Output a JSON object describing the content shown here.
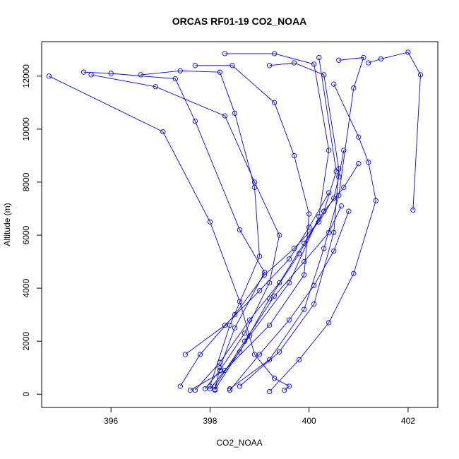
{
  "chart_data": {
    "type": "line",
    "title": "ORCAS RF01-19 CO2_NOAA",
    "xlabel": "CO2_NOAA",
    "ylabel": "Altitude (m)",
    "xlim": [
      394.6,
      402.6
    ],
    "ylim": [
      -500,
      13300
    ],
    "xticks": [
      396,
      398,
      400,
      402
    ],
    "yticks": [
      0,
      2000,
      4000,
      6000,
      8000,
      10000,
      12000
    ],
    "grid": false,
    "legend": "none",
    "series_color": "#0000ff",
    "marker": "open-circle",
    "series": [
      {
        "x": [
          394.75,
          397.05,
          398.0,
          398.6,
          398.9,
          399.3,
          399.6,
          399.5
        ],
        "y": [
          12000,
          9900,
          6500,
          3500,
          1500,
          600,
          300,
          150
        ]
      },
      {
        "x": [
          395.45,
          396.0,
          397.3,
          397.7,
          398.6,
          399.1,
          398.5,
          398.2,
          398.1
        ],
        "y": [
          12150,
          12100,
          11900,
          10300,
          6200,
          4600,
          2500,
          1000,
          150
        ]
      },
      {
        "x": [
          395.6,
          396.9,
          398.3,
          398.9,
          399.4,
          399.2,
          398.7,
          398.2,
          397.9
        ],
        "y": [
          12050,
          11600,
          10500,
          8000,
          6000,
          4200,
          2300,
          900,
          200
        ]
      },
      {
        "x": [
          396.6,
          397.4,
          398.2,
          398.5,
          398.9,
          399.0,
          398.4,
          398.0
        ],
        "y": [
          12050,
          12200,
          12150,
          10600,
          7800,
          5200,
          2600,
          300
        ]
      },
      {
        "x": [
          397.7,
          398.45,
          399.3,
          399.7,
          400.0,
          399.9,
          399.2,
          398.3,
          397.6
        ],
        "y": [
          12400,
          12400,
          11000,
          9000,
          6800,
          4500,
          2600,
          900,
          150
        ]
      },
      {
        "x": [
          398.3,
          399.3,
          400.1,
          400.4,
          400.2,
          399.6,
          398.8,
          398.1
        ],
        "y": [
          12850,
          12850,
          12450,
          9200,
          6700,
          4200,
          2200,
          180
        ]
      },
      {
        "x": [
          399.2,
          399.7,
          400.3,
          400.6,
          400.5,
          400.1,
          399.4,
          398.6
        ],
        "y": [
          12400,
          12500,
          12050,
          8500,
          6100,
          3400,
          1600,
          300
        ]
      },
      {
        "x": [
          400.6,
          401.1,
          400.9,
          400.6,
          400.3,
          399.9,
          399.2,
          398.4
        ],
        "y": [
          12600,
          12700,
          11550,
          7500,
          5500,
          3200,
          1300,
          200
        ]
      },
      {
        "x": [
          401.2,
          401.45,
          402.0,
          402.25,
          402.1
        ],
        "y": [
          12500,
          12650,
          12900,
          12050,
          6950
        ]
      },
      {
        "x": [
          400.5,
          401.0,
          401.2,
          401.35,
          400.9,
          400.4,
          399.8,
          399.2
        ],
        "y": [
          11700,
          9700,
          8750,
          7300,
          4550,
          2700,
          1300,
          100
        ]
      },
      {
        "x": [
          397.4,
          397.8,
          398.5,
          399.1,
          399.7,
          400.2,
          400.5,
          400.6,
          400.7
        ],
        "y": [
          300,
          1500,
          3000,
          4500,
          5500,
          6500,
          7400,
          8200,
          9200
        ]
      },
      {
        "x": [
          397.7,
          398.2,
          398.8,
          399.4,
          399.9,
          400.3,
          400.7,
          401.0
        ],
        "y": [
          150,
          1200,
          2800,
          4200,
          5700,
          6900,
          7800,
          8700
        ]
      },
      {
        "x": [
          398.0,
          398.6,
          399.2,
          399.8,
          400.3,
          400.55,
          400.2
        ],
        "y": [
          200,
          1600,
          3600,
          5300,
          6900,
          8400,
          12700
        ]
      },
      {
        "x": [
          397.5,
          398.3,
          399.0,
          399.6,
          400.0,
          400.4
        ],
        "y": [
          1500,
          2600,
          3900,
          5100,
          6300,
          7600
        ]
      },
      {
        "x": [
          398.1,
          398.7,
          399.3,
          399.9,
          400.4,
          400.65
        ],
        "y": [
          300,
          2000,
          3700,
          5000,
          6100,
          7100
        ]
      },
      {
        "x": [
          398.4,
          399.0,
          399.6,
          400.1,
          400.5,
          400.8
        ],
        "y": [
          150,
          1500,
          2800,
          4100,
          5400,
          6900
        ]
      }
    ]
  }
}
